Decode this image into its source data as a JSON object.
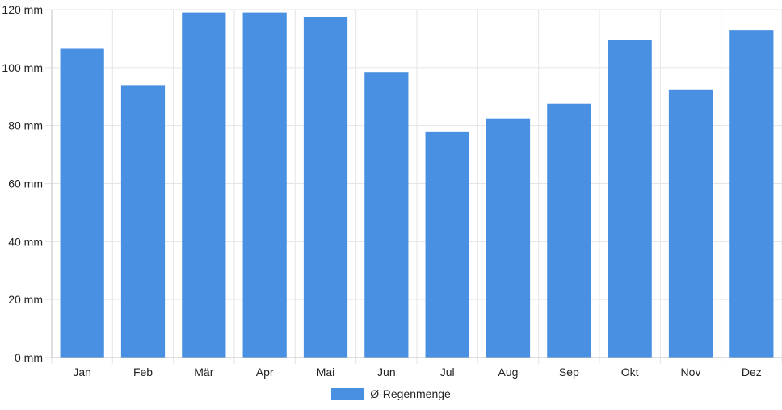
{
  "chart_data": {
    "type": "bar",
    "categories": [
      "Jan",
      "Feb",
      "Mär",
      "Apr",
      "Mai",
      "Jun",
      "Jul",
      "Aug",
      "Sep",
      "Okt",
      "Nov",
      "Dez"
    ],
    "series": [
      {
        "name": "Ø-Regenmenge",
        "values": [
          106.5,
          94.0,
          119.0,
          119.0,
          117.5,
          98.5,
          78.0,
          82.5,
          87.5,
          109.5,
          92.5,
          113.0
        ]
      }
    ],
    "unit": "mm",
    "ylim": [
      0,
      120
    ],
    "yticks": [
      "0 mm",
      "20 mm",
      "40 mm",
      "60 mm",
      "80 mm",
      "100 mm",
      "120 mm"
    ],
    "grid": true,
    "legend_position": "bottom",
    "colors": {
      "bar": "#4a90e2",
      "grid": "#e5e5e5",
      "axis": "#bfbfbf"
    }
  }
}
